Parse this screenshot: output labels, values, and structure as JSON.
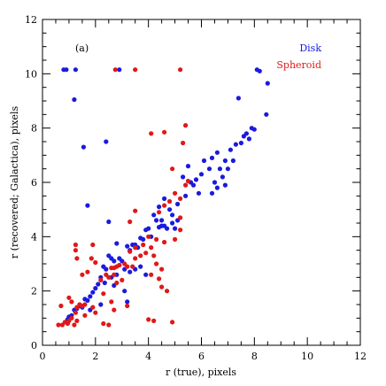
{
  "chart_data": {
    "type": "scatter",
    "panel_label": "(a)",
    "xlabel": "r (true), pixels",
    "ylabel": "r (recovered; Galactica), pixels",
    "xlim": [
      0,
      12
    ],
    "ylim": [
      0,
      12
    ],
    "xticks": [
      "0",
      "2",
      "4",
      "6",
      "8",
      "10",
      "12"
    ],
    "yticks": [
      "0",
      "2",
      "4",
      "6",
      "8",
      "10",
      "12"
    ],
    "legend_placement": "top-right",
    "grid": false,
    "series": [
      {
        "name": "Disk",
        "color": "#1a1adf",
        "points": [
          [
            0.8,
            10.15
          ],
          [
            0.9,
            10.15
          ],
          [
            1.25,
            10.15
          ],
          [
            2.9,
            10.15
          ],
          [
            8.1,
            10.15
          ],
          [
            8.2,
            10.1
          ],
          [
            8.5,
            9.65
          ],
          [
            1.2,
            9.05
          ],
          [
            7.4,
            9.1
          ],
          [
            7.9,
            8.0
          ],
          [
            8.45,
            8.5
          ],
          [
            2.4,
            7.5
          ],
          [
            1.55,
            7.3
          ],
          [
            1.7,
            5.15
          ],
          [
            2.5,
            4.55
          ],
          [
            7.6,
            7.7
          ],
          [
            7.7,
            7.8
          ],
          [
            7.8,
            7.6
          ],
          [
            8.0,
            7.95
          ],
          [
            7.3,
            7.4
          ],
          [
            7.5,
            7.45
          ],
          [
            7.1,
            7.2
          ],
          [
            6.6,
            7.1
          ],
          [
            6.4,
            6.9
          ],
          [
            6.7,
            6.5
          ],
          [
            6.9,
            6.8
          ],
          [
            7.0,
            6.5
          ],
          [
            7.2,
            6.8
          ],
          [
            6.3,
            6.5
          ],
          [
            6.1,
            6.8
          ],
          [
            6.0,
            6.3
          ],
          [
            5.5,
            6.6
          ],
          [
            5.8,
            6.1
          ],
          [
            5.6,
            6.0
          ],
          [
            5.7,
            5.9
          ],
          [
            6.5,
            6.0
          ],
          [
            6.8,
            6.2
          ],
          [
            6.9,
            5.9
          ],
          [
            6.4,
            5.6
          ],
          [
            6.6,
            5.8
          ],
          [
            5.9,
            5.6
          ],
          [
            5.3,
            6.2
          ],
          [
            5.1,
            5.2
          ],
          [
            5.4,
            5.5
          ],
          [
            4.8,
            5.0
          ],
          [
            4.9,
            4.8
          ],
          [
            5.1,
            4.6
          ],
          [
            4.6,
            5.4
          ],
          [
            4.5,
            4.6
          ],
          [
            4.4,
            4.35
          ],
          [
            4.5,
            4.4
          ],
          [
            4.7,
            4.3
          ],
          [
            4.4,
            5.1
          ],
          [
            4.2,
            4.8
          ],
          [
            4.6,
            4.4
          ],
          [
            4.9,
            4.5
          ],
          [
            5.0,
            4.3
          ],
          [
            4.3,
            4.6
          ],
          [
            4.0,
            4.3
          ],
          [
            4.1,
            4.0
          ],
          [
            3.9,
            4.25
          ],
          [
            3.8,
            3.9
          ],
          [
            3.7,
            3.95
          ],
          [
            3.6,
            3.6
          ],
          [
            3.5,
            3.7
          ],
          [
            3.4,
            3.7
          ],
          [
            3.3,
            3.5
          ],
          [
            3.2,
            3.65
          ],
          [
            2.8,
            3.75
          ],
          [
            2.9,
            3.2
          ],
          [
            3.0,
            3.1
          ],
          [
            2.7,
            3.1
          ],
          [
            2.6,
            3.2
          ],
          [
            2.5,
            3.3
          ],
          [
            2.4,
            2.8
          ],
          [
            2.3,
            2.9
          ],
          [
            2.2,
            2.5
          ],
          [
            2.1,
            2.25
          ],
          [
            2.0,
            2.1
          ],
          [
            2.35,
            2.3
          ],
          [
            2.6,
            2.5
          ],
          [
            2.8,
            2.6
          ],
          [
            3.1,
            2.8
          ],
          [
            3.3,
            2.7
          ],
          [
            3.5,
            2.8
          ],
          [
            3.7,
            2.9
          ],
          [
            3.9,
            2.6
          ],
          [
            1.9,
            1.95
          ],
          [
            1.8,
            1.8
          ],
          [
            1.7,
            1.65
          ],
          [
            1.6,
            1.7
          ],
          [
            1.5,
            1.4
          ],
          [
            1.4,
            1.45
          ],
          [
            1.3,
            1.35
          ],
          [
            1.2,
            1.3
          ],
          [
            1.1,
            1.1
          ],
          [
            1.0,
            1.05
          ],
          [
            0.95,
            0.95
          ],
          [
            3.1,
            2.0
          ],
          [
            3.2,
            1.6
          ],
          [
            1.8,
            1.3
          ],
          [
            2.2,
            1.5
          ],
          [
            2.7,
            2.2
          ]
        ]
      },
      {
        "name": "Spheroid",
        "color": "#e01818",
        "points": [
          [
            2.75,
            10.15
          ],
          [
            3.5,
            10.15
          ],
          [
            5.2,
            10.15
          ],
          [
            5.4,
            8.1
          ],
          [
            4.6,
            7.85
          ],
          [
            4.1,
            7.8
          ],
          [
            5.3,
            7.45
          ],
          [
            4.9,
            6.5
          ],
          [
            5.5,
            6.05
          ],
          [
            5.4,
            5.9
          ],
          [
            5.0,
            5.6
          ],
          [
            5.2,
            5.4
          ],
          [
            4.8,
            5.3
          ],
          [
            4.6,
            5.15
          ],
          [
            4.4,
            4.9
          ],
          [
            3.5,
            4.95
          ],
          [
            3.3,
            4.55
          ],
          [
            5.2,
            4.7
          ],
          [
            5.2,
            4.25
          ],
          [
            5.0,
            3.9
          ],
          [
            4.6,
            3.8
          ],
          [
            4.3,
            3.9
          ],
          [
            4.0,
            4.0
          ],
          [
            4.1,
            3.6
          ],
          [
            3.9,
            3.4
          ],
          [
            3.8,
            3.7
          ],
          [
            3.5,
            3.6
          ],
          [
            3.3,
            3.45
          ],
          [
            3.7,
            3.3
          ],
          [
            3.5,
            3.2
          ],
          [
            3.4,
            2.9
          ],
          [
            3.2,
            2.9
          ],
          [
            3.1,
            3.0
          ],
          [
            2.9,
            2.95
          ],
          [
            2.8,
            2.9
          ],
          [
            2.7,
            2.85
          ],
          [
            2.6,
            2.85
          ],
          [
            2.7,
            2.6
          ],
          [
            3.0,
            2.4
          ],
          [
            2.8,
            2.3
          ],
          [
            2.5,
            2.5
          ],
          [
            2.4,
            2.6
          ],
          [
            2.2,
            2.4
          ],
          [
            1.9,
            3.7
          ],
          [
            1.85,
            3.2
          ],
          [
            2.0,
            3.05
          ],
          [
            1.7,
            2.7
          ],
          [
            1.5,
            2.6
          ],
          [
            1.25,
            3.7
          ],
          [
            1.25,
            3.5
          ],
          [
            1.3,
            3.2
          ],
          [
            4.2,
            3.3
          ],
          [
            4.3,
            3.0
          ],
          [
            4.5,
            2.8
          ],
          [
            4.1,
            2.6
          ],
          [
            4.4,
            2.45
          ],
          [
            4.5,
            2.15
          ],
          [
            4.7,
            2.0
          ],
          [
            3.2,
            1.45
          ],
          [
            2.7,
            1.3
          ],
          [
            1.6,
            1.5
          ],
          [
            1.5,
            1.45
          ],
          [
            1.4,
            1.5
          ],
          [
            1.3,
            1.4
          ],
          [
            1.25,
            1.2
          ],
          [
            1.1,
            1.0
          ],
          [
            1.0,
            0.9
          ],
          [
            0.95,
            0.8
          ],
          [
            0.85,
            0.85
          ],
          [
            0.75,
            0.75
          ],
          [
            0.6,
            0.75
          ],
          [
            0.7,
            1.45
          ],
          [
            1.0,
            1.75
          ],
          [
            1.1,
            1.6
          ],
          [
            1.3,
            0.9
          ],
          [
            2.3,
            0.8
          ],
          [
            2.5,
            0.75
          ],
          [
            4.0,
            0.95
          ],
          [
            4.2,
            0.9
          ],
          [
            4.9,
            0.85
          ],
          [
            1.2,
            0.75
          ],
          [
            1.6,
            1.1
          ],
          [
            1.9,
            1.4
          ],
          [
            2.0,
            1.2
          ],
          [
            2.3,
            1.9
          ],
          [
            2.6,
            1.6
          ]
        ]
      }
    ]
  }
}
